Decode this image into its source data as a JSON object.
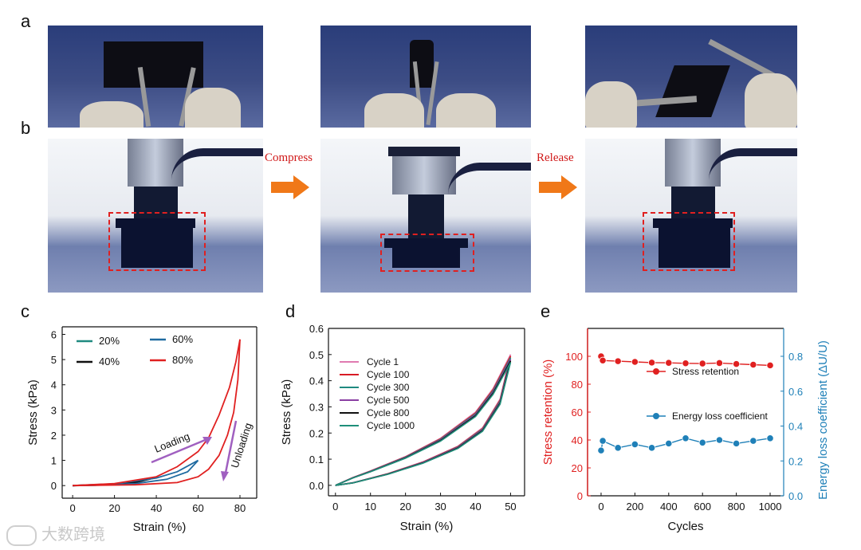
{
  "panels": {
    "a": "a",
    "b": "b",
    "c": "c",
    "d": "d",
    "e": "e"
  },
  "arrows": {
    "compress": "Compress",
    "release": "Release"
  },
  "chart_data": [
    {
      "type": "line",
      "panel": "c",
      "xlabel": "Strain (%)",
      "ylabel": "Stress (kPa)",
      "xlim": [
        -5,
        88
      ],
      "ylim": [
        -0.5,
        6.3
      ],
      "xticks": [
        0,
        20,
        40,
        60,
        80
      ],
      "yticks": [
        0,
        1,
        2,
        3,
        4,
        5,
        6
      ],
      "series": [
        {
          "name": "20%",
          "color": "#1f8a80",
          "loading": [
            [
              0,
              0
            ],
            [
              10,
              0.02
            ],
            [
              20,
              0.06
            ]
          ],
          "unloading": [
            [
              20,
              0.06
            ],
            [
              10,
              0.01
            ],
            [
              0,
              0
            ]
          ]
        },
        {
          "name": "40%",
          "color": "#111111",
          "loading": [
            [
              0,
              0
            ],
            [
              10,
              0.03
            ],
            [
              20,
              0.07
            ],
            [
              30,
              0.15
            ],
            [
              40,
              0.32
            ]
          ],
          "unloading": [
            [
              40,
              0.32
            ],
            [
              30,
              0.12
            ],
            [
              20,
              0.05
            ],
            [
              10,
              0.02
            ],
            [
              0,
              0
            ]
          ]
        },
        {
          "name": "60%",
          "color": "#1f6aa0",
          "loading": [
            [
              0,
              0
            ],
            [
              20,
              0.07
            ],
            [
              40,
              0.3
            ],
            [
              50,
              0.55
            ],
            [
              60,
              1.0
            ]
          ],
          "unloading": [
            [
              60,
              1.0
            ],
            [
              55,
              0.55
            ],
            [
              45,
              0.25
            ],
            [
              30,
              0.08
            ],
            [
              10,
              0.01
            ],
            [
              0,
              0
            ]
          ]
        },
        {
          "name": "80%",
          "color": "#e02020",
          "loading": [
            [
              0,
              0
            ],
            [
              20,
              0.08
            ],
            [
              40,
              0.35
            ],
            [
              50,
              0.75
            ],
            [
              60,
              1.35
            ],
            [
              65,
              1.9
            ],
            [
              70,
              2.8
            ],
            [
              75,
              3.9
            ],
            [
              78,
              4.9
            ],
            [
              80,
              5.8
            ]
          ],
          "unloading": [
            [
              80,
              5.8
            ],
            [
              79,
              4.2
            ],
            [
              77,
              2.9
            ],
            [
              74,
              2.0
            ],
            [
              70,
              1.2
            ],
            [
              65,
              0.65
            ],
            [
              60,
              0.35
            ],
            [
              50,
              0.12
            ],
            [
              30,
              0.03
            ],
            [
              0,
              0
            ]
          ]
        }
      ],
      "annotations": [
        {
          "text": "Loading"
        },
        {
          "text": "Unloading"
        }
      ]
    },
    {
      "type": "line",
      "panel": "d",
      "xlabel": "Strain (%)",
      "ylabel": "Stress (kPa)",
      "xlim": [
        -2,
        54
      ],
      "ylim": [
        -0.04,
        0.6
      ],
      "xticks": [
        0,
        10,
        20,
        30,
        40,
        50
      ],
      "yticks": [
        0.0,
        0.1,
        0.2,
        0.3,
        0.4,
        0.5,
        0.6
      ],
      "series": [
        {
          "name": "Cycle 1",
          "color": "#e07ab0"
        },
        {
          "name": "Cycle 100",
          "color": "#d81b25"
        },
        {
          "name": "Cycle 300",
          "color": "#1f8a80"
        },
        {
          "name": "Cycle 500",
          "color": "#8a3fa3"
        },
        {
          "name": "Cycle 800",
          "color": "#111111"
        },
        {
          "name": "Cycle 1000",
          "color": "#1f8f7a"
        }
      ],
      "loading": [
        [
          0,
          0
        ],
        [
          5,
          0.03
        ],
        [
          10,
          0.055
        ],
        [
          20,
          0.11
        ],
        [
          30,
          0.18
        ],
        [
          40,
          0.28
        ],
        [
          45,
          0.37
        ],
        [
          50,
          0.5
        ]
      ],
      "unloading": [
        [
          50,
          0.5
        ],
        [
          47,
          0.33
        ],
        [
          42,
          0.22
        ],
        [
          35,
          0.15
        ],
        [
          25,
          0.09
        ],
        [
          15,
          0.045
        ],
        [
          5,
          0.01
        ],
        [
          0,
          0
        ]
      ]
    },
    {
      "type": "scatter",
      "panel": "e",
      "xlabel": "Cycles",
      "ylabel_left": "Stress retention (%)",
      "ylabel_right": "Energy loss coefficient (ΔU/U)",
      "xlim": [
        -80,
        1080
      ],
      "ylim_left": [
        0,
        120
      ],
      "ylim_right": [
        0,
        0.96
      ],
      "xticks": [
        0,
        200,
        400,
        600,
        800,
        1000
      ],
      "yticks_left": [
        0,
        20,
        40,
        60,
        80,
        100
      ],
      "yticks_right": [
        0.0,
        0.2,
        0.4,
        0.6,
        0.8
      ],
      "series": [
        {
          "name": "Stress retention",
          "axis": "left",
          "color": "#e02020",
          "x": [
            0,
            10,
            100,
            200,
            300,
            400,
            500,
            600,
            700,
            800,
            900,
            1000
          ],
          "y": [
            100,
            97,
            96.5,
            96,
            95.5,
            95.3,
            95,
            94.8,
            95.2,
            94.5,
            94,
            93.5
          ]
        },
        {
          "name": "Energy loss coefficient",
          "axis": "right",
          "color": "#1f80b8",
          "x": [
            0,
            10,
            100,
            200,
            300,
            400,
            500,
            600,
            700,
            800,
            900,
            1000
          ],
          "y": [
            0.26,
            0.315,
            0.275,
            0.295,
            0.275,
            0.3,
            0.33,
            0.305,
            0.32,
            0.3,
            0.315,
            0.33
          ]
        }
      ]
    }
  ],
  "watermark": "大数跨境"
}
